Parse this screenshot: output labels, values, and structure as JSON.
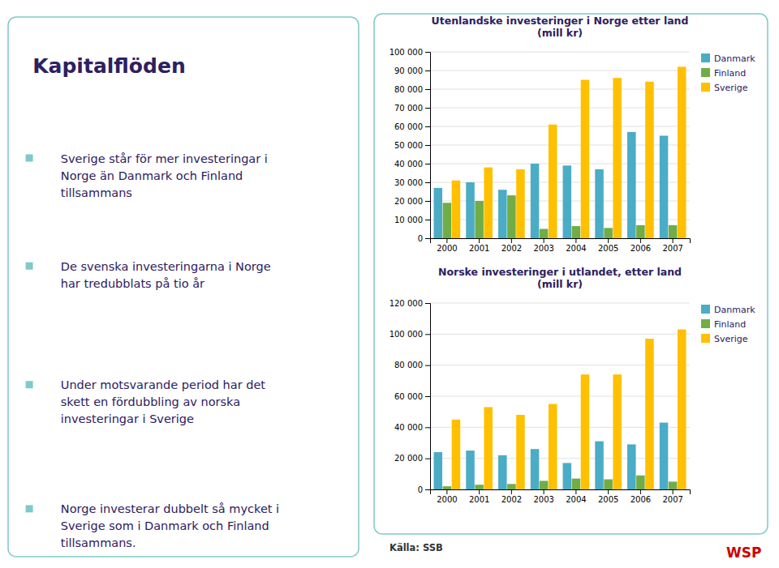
{
  "title": "Kapitalflöden",
  "bullets": [
    "Sverige står för mer investeringar i\nNorge än Danmark och Finland\ntillsammans",
    "De svenska investeringarna i Norge\nhar tredubblats på tio år",
    "Under motsvarande period har det\nskett en fördubbling av norska\ninvesteringar i Sverige",
    "Norge investerar dubbelt så mycket i\nSverige som i Danmark och Finland\ntillsammans."
  ],
  "source": "Källa: SSB",
  "logo": "WSP",
  "chart_data": [
    {
      "type": "bar",
      "title": "Utenlandske investeringer i Norge etter land\n(mill kr)",
      "categories": [
        "2000",
        "2001",
        "2002",
        "2003",
        "2004",
        "2005",
        "2006",
        "2007"
      ],
      "series": [
        {
          "name": "Danmark",
          "color": "#4bacc6",
          "values": [
            27000,
            30000,
            26000,
            40000,
            39000,
            37000,
            57000,
            55000
          ]
        },
        {
          "name": "Finland",
          "color": "#70ad47",
          "values": [
            19000,
            20000,
            23000,
            5000,
            6500,
            5500,
            7000,
            7000
          ]
        },
        {
          "name": "Sverige",
          "color": "#ffc000",
          "values": [
            31000,
            38000,
            37000,
            61000,
            85000,
            86000,
            84000,
            92000
          ]
        }
      ],
      "ylim": [
        0,
        100000
      ],
      "yticks": [
        0,
        {
          "value": 10000,
          "label": "10 000"
        },
        {
          "value": 20000,
          "label": "20 000"
        },
        {
          "value": 30000,
          "label": "30 000"
        },
        {
          "value": 40000,
          "label": "40 000"
        },
        {
          "value": 50000,
          "label": "50 000"
        },
        {
          "value": 60000,
          "label": "60 000"
        },
        {
          "value": 70000,
          "label": "70 000"
        },
        {
          "value": 80000,
          "label": "80 000"
        },
        {
          "value": 90000,
          "label": "90 000"
        },
        {
          "value": 100000,
          "label": "100 000"
        }
      ],
      "grid": true,
      "legend": "upper right"
    },
    {
      "type": "bar",
      "title": "Norske investeringer i utlandet, etter land\n(mill kr)",
      "categories": [
        "2000",
        "2001",
        "2002",
        "2003",
        "2004",
        "2005",
        "2006",
        "2007"
      ],
      "series": [
        {
          "name": "Danmark",
          "color": "#4bacc6",
          "values": [
            24000,
            25000,
            22000,
            26000,
            17000,
            31000,
            29000,
            43000
          ]
        },
        {
          "name": "Finland",
          "color": "#70ad47",
          "values": [
            2000,
            3000,
            3500,
            5500,
            7000,
            6500,
            9000,
            5000
          ]
        },
        {
          "name": "Sverige",
          "color": "#ffc000",
          "values": [
            45000,
            53000,
            48000,
            55000,
            74000,
            74000,
            97000,
            103000
          ]
        }
      ],
      "ylim": [
        0,
        120000
      ],
      "yticks": [
        0,
        {
          "value": 20000,
          "label": "20 000"
        },
        {
          "value": 40000,
          "label": "40 000"
        },
        {
          "value": 60000,
          "label": "60 000"
        },
        {
          "value": 80000,
          "label": "80 000"
        },
        {
          "value": 100000,
          "label": "100 000"
        },
        {
          "value": 120000,
          "label": "120 000"
        }
      ],
      "grid": true,
      "legend": "upper right"
    }
  ]
}
